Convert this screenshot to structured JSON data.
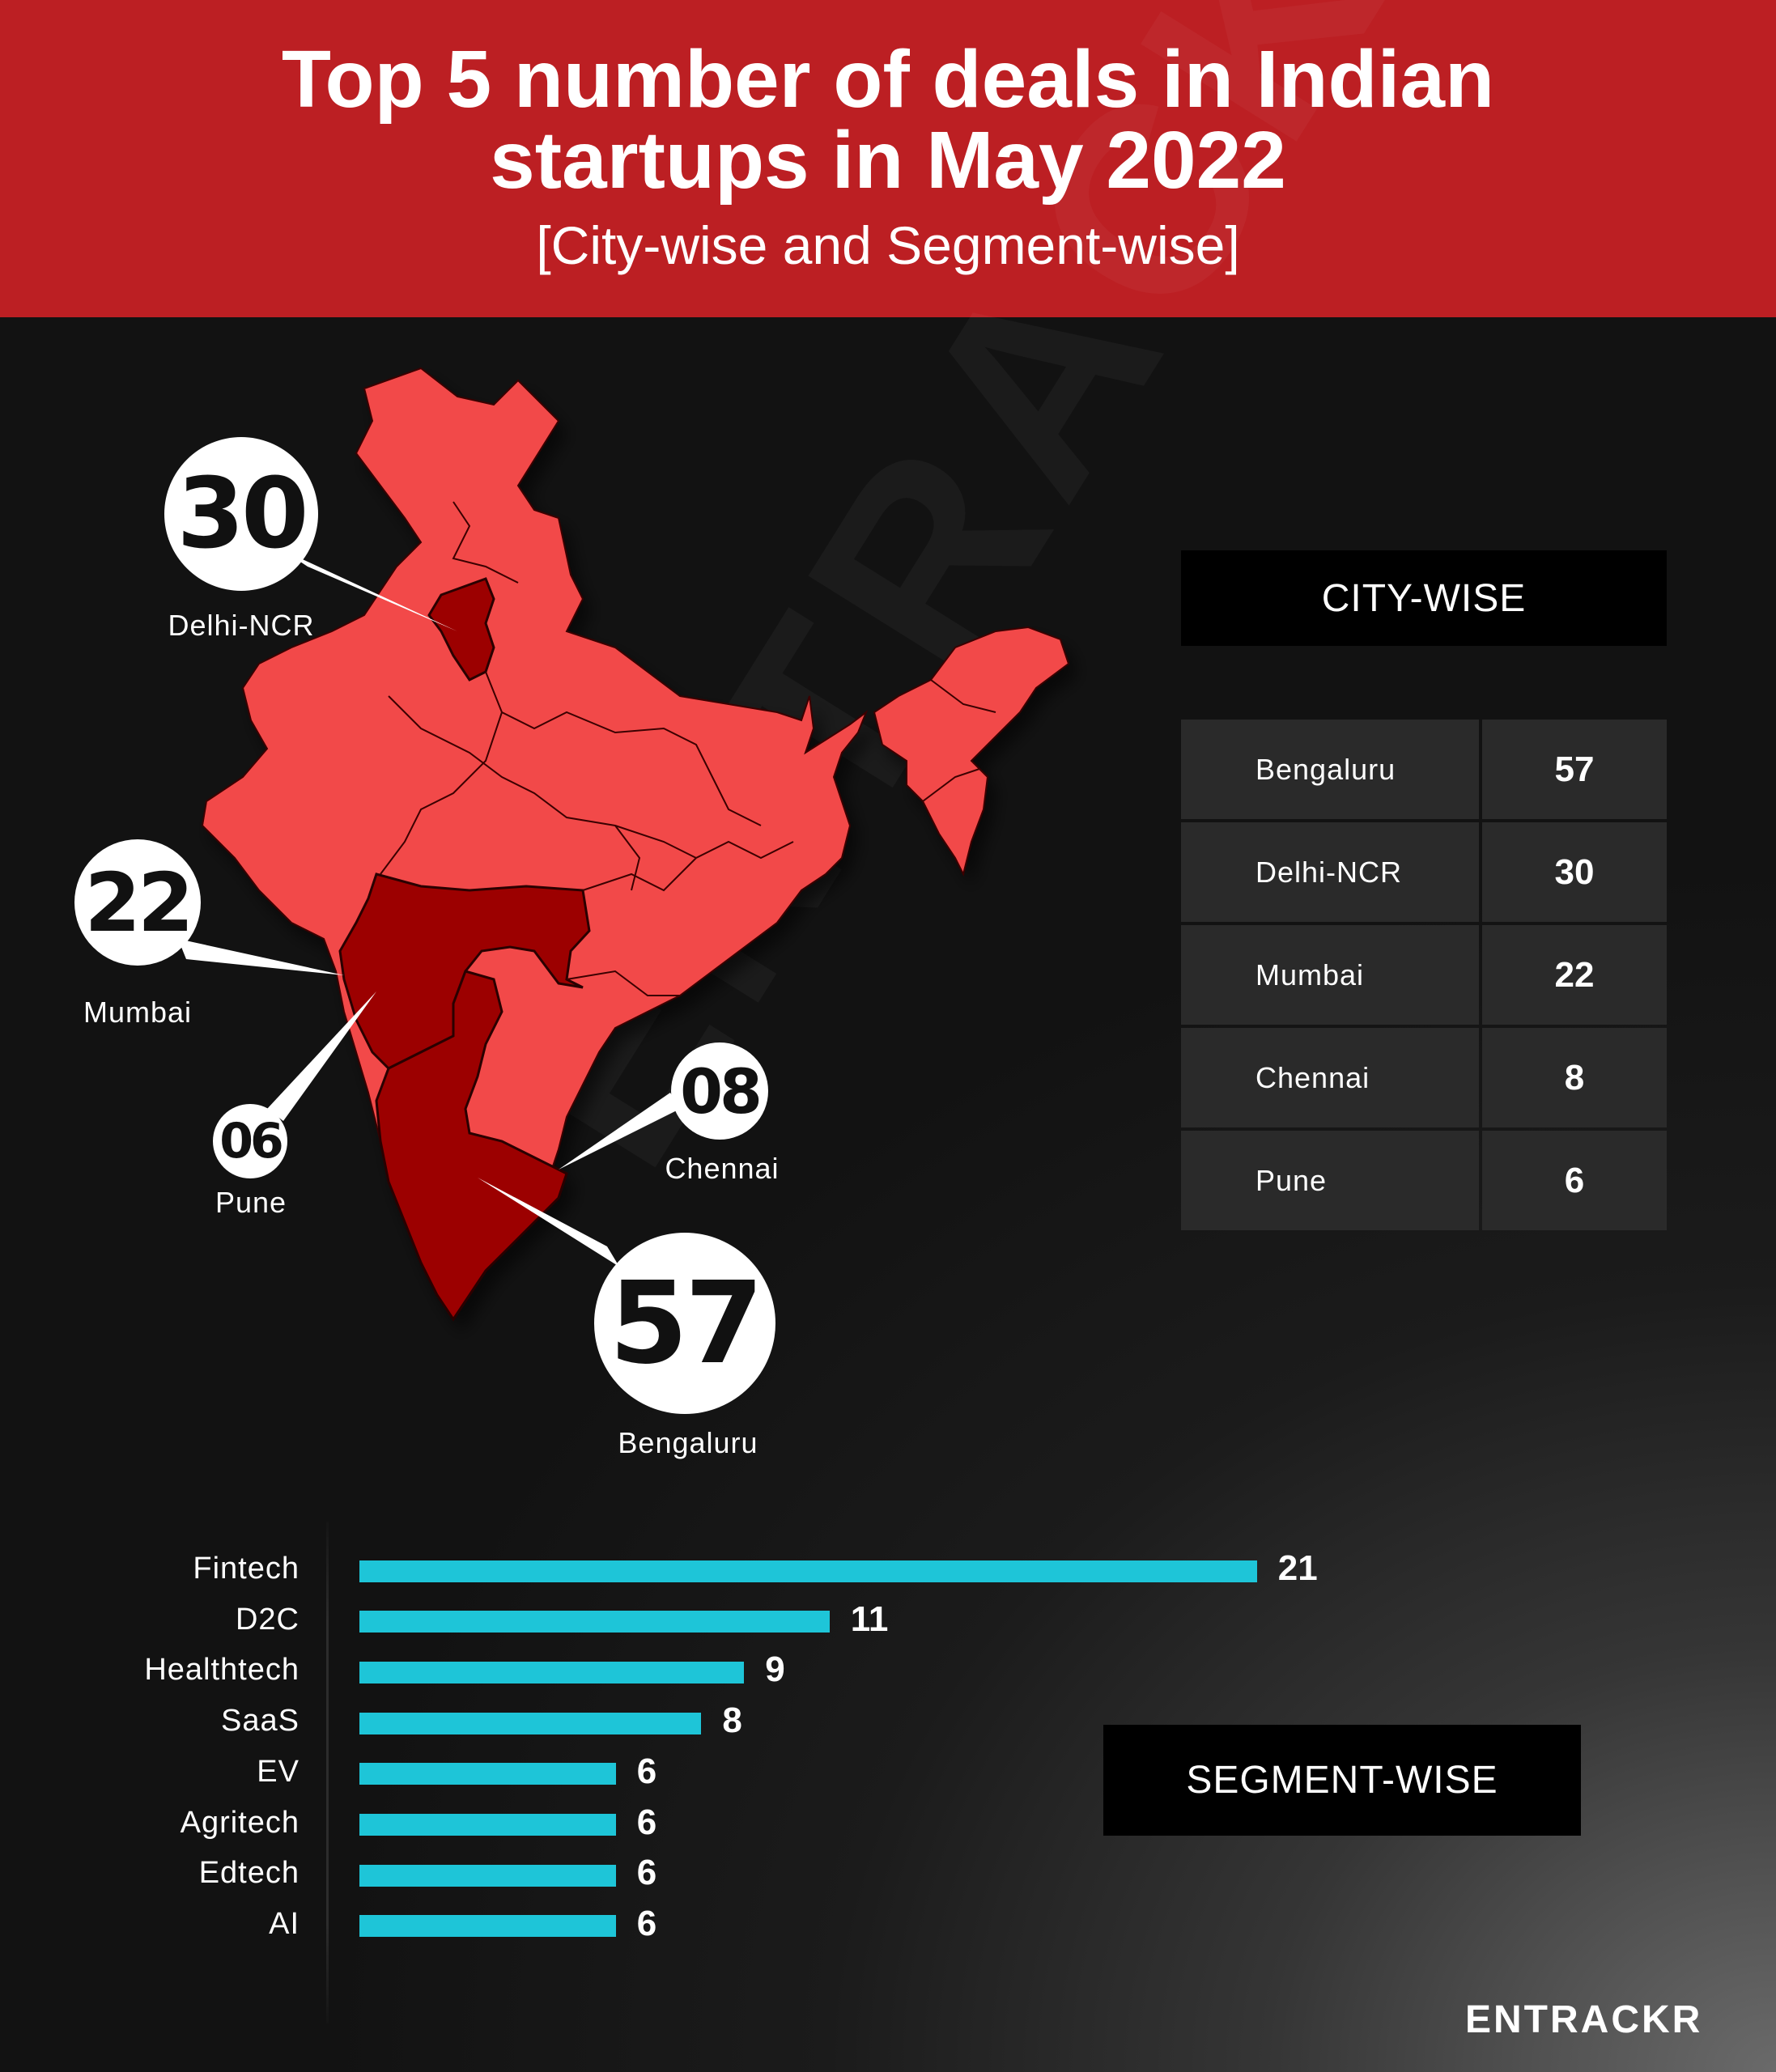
{
  "header": {
    "title_line1": "Top 5 number of deals in Indian",
    "title_line2": "startups in May 2022",
    "subtitle": "[City-wise and Segment-wise]"
  },
  "watermark": "ENTRACKR",
  "logo": "ENTRACKR",
  "colors": {
    "header_bg": "#bc1f23",
    "map_fill": "#f24a4a",
    "map_highlight": "#9c0000",
    "bar": "#1ec5d8",
    "panel": "#2a2a2a"
  },
  "map_callouts": [
    {
      "value": "30",
      "city": "Delhi-NCR"
    },
    {
      "value": "22",
      "city": "Mumbai"
    },
    {
      "value": "06",
      "city": "Pune"
    },
    {
      "value": "08",
      "city": "Chennai"
    },
    {
      "value": "57",
      "city": "Bengaluru"
    }
  ],
  "city_wise": {
    "heading": "CITY-WISE",
    "rows": [
      {
        "city": "Bengaluru",
        "deals": "57"
      },
      {
        "city": "Delhi-NCR",
        "deals": "30"
      },
      {
        "city": "Mumbai",
        "deals": "22"
      },
      {
        "city": "Chennai",
        "deals": "8"
      },
      {
        "city": "Pune",
        "deals": "6"
      }
    ]
  },
  "segment_heading": "SEGMENT-WISE",
  "chart_data": {
    "type": "bar",
    "orientation": "horizontal",
    "categories": [
      "Fintech",
      "D2C",
      "Healthtech",
      "SaaS",
      "EV",
      "Agritech",
      "Edtech",
      "AI"
    ],
    "values": [
      21,
      11,
      9,
      8,
      6,
      6,
      6,
      6
    ],
    "grid": false
  }
}
